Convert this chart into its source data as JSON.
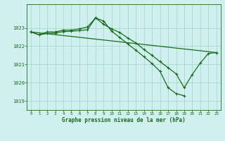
{
  "background_color": "#cff0ee",
  "grid_color": "#9fd4c8",
  "line_color": "#1a6b1a",
  "title": "Graphe pression niveau de la mer (hPa)",
  "ylim": [
    1018.5,
    1024.3
  ],
  "xlim": [
    -0.5,
    23.5
  ],
  "yticks": [
    1019,
    1020,
    1021,
    1022,
    1023
  ],
  "xticks": [
    0,
    1,
    2,
    3,
    4,
    5,
    6,
    7,
    8,
    9,
    10,
    11,
    12,
    13,
    14,
    15,
    16,
    17,
    18,
    19,
    20,
    21,
    22,
    23
  ],
  "line1_x": [
    0,
    1,
    2,
    3,
    4,
    5,
    6,
    7,
    8,
    9,
    10,
    11,
    12,
    13,
    14,
    15,
    16,
    17,
    18,
    19,
    20,
    21,
    22,
    23
  ],
  "line1_y": [
    1022.78,
    1022.62,
    1022.78,
    1022.78,
    1022.88,
    1022.88,
    1022.95,
    1023.05,
    1023.55,
    1023.2,
    1022.95,
    1022.75,
    1022.45,
    1022.18,
    1021.82,
    1021.5,
    1021.15,
    1020.82,
    1020.48,
    1019.72,
    1020.45,
    1021.08,
    1021.6,
    1021.65
  ],
  "line2_x": [
    0,
    1,
    2,
    3,
    4,
    5,
    6,
    7,
    8,
    9,
    10,
    11,
    12,
    13,
    14,
    15,
    16,
    17,
    18,
    19
  ],
  "line2_y": [
    1022.78,
    1022.62,
    1022.7,
    1022.72,
    1022.8,
    1022.82,
    1022.85,
    1022.9,
    1023.55,
    1023.38,
    1022.82,
    1022.48,
    1022.12,
    1021.78,
    1021.42,
    1021.05,
    1020.62,
    1019.72,
    1019.4,
    1019.28
  ],
  "line3_x": [
    0,
    23
  ],
  "line3_y": [
    1022.78,
    1021.65
  ]
}
